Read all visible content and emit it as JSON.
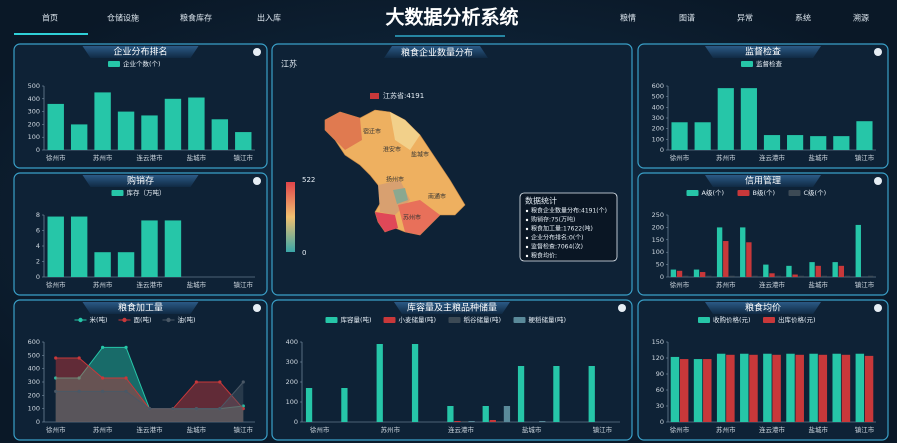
{
  "nav": {
    "title": "大数据分析系统",
    "left": [
      "首页",
      "仓储设施",
      "粮食库存",
      "出入库"
    ],
    "right": [
      "粮情",
      "图谱",
      "异常",
      "系统",
      "溯源"
    ]
  },
  "map": {
    "title": "粮食企业数量分布",
    "region": "江苏",
    "tooltip": "江苏省:4191",
    "visual_max": 522,
    "visual_min": 0,
    "labels": [
      "宿迁市",
      "淮安市",
      "盐城市",
      "扬州市",
      "南通市",
      "苏州市"
    ],
    "stats_title": "数据统计",
    "stats": [
      "粮食企业数量分布:4191(个)",
      "购销存:75(万吨)",
      "粮食加工量:17622(吨)",
      "企业分布排名:0(个)",
      "监督检查:7064(次)",
      "粮食均价:"
    ]
  },
  "chart_data": [
    {
      "type": "bar",
      "title": "企业分布排名",
      "categories": [
        "徐州市",
        null,
        "苏州市",
        null,
        "连云港市",
        null,
        "盐城市",
        null,
        "镇江市"
      ],
      "series": [
        {
          "name": "企业个数(个)",
          "color": "#26c6a8",
          "values": [
            360,
            200,
            450,
            300,
            270,
            400,
            410,
            240,
            140
          ]
        }
      ],
      "ylim": [
        0,
        500
      ],
      "yticks": [
        0,
        100,
        200,
        300,
        400,
        500
      ]
    },
    {
      "type": "bar",
      "title": "购销存",
      "categories": [
        "徐州市",
        null,
        "苏州市",
        null,
        "连云港市",
        null,
        "盐城市",
        null,
        "镇江市"
      ],
      "series": [
        {
          "name": "库存（万吨）",
          "color": "#26c6a8",
          "values": [
            7.8,
            7.8,
            3.2,
            3.2,
            7.3,
            7.3,
            null,
            null,
            null
          ]
        }
      ],
      "ylim": [
        0,
        8
      ],
      "yticks": [
        0,
        2,
        4,
        6,
        8
      ]
    },
    {
      "type": "area",
      "title": "粮食加工量",
      "categories": [
        "徐州市",
        null,
        "苏州市",
        null,
        "连云港市",
        null,
        "盐城市",
        null,
        "镇江市"
      ],
      "series": [
        {
          "name": "米(吨)",
          "color": "#26c6a8",
          "values": [
            330,
            330,
            560,
            560,
            100,
            100,
            100,
            100,
            120
          ]
        },
        {
          "name": "面(吨)",
          "color": "#c8383a",
          "values": [
            480,
            480,
            330,
            330,
            100,
            100,
            300,
            300,
            100
          ]
        },
        {
          "name": "油(吨)",
          "color": "#4a5866",
          "values": [
            230,
            230,
            230,
            230,
            100,
            100,
            100,
            100,
            300
          ]
        }
      ],
      "ylim": [
        0,
        600
      ],
      "yticks": [
        0,
        100,
        200,
        300,
        400,
        500,
        600
      ]
    },
    {
      "type": "bar",
      "title": "监督检查",
      "categories": [
        "徐州市",
        null,
        "苏州市",
        null,
        "连云港市",
        null,
        "盐城市",
        null,
        "镇江市"
      ],
      "series": [
        {
          "name": "监督检查",
          "color": "#26c6a8",
          "values": [
            260,
            260,
            580,
            580,
            140,
            140,
            130,
            130,
            270
          ]
        }
      ],
      "ylim": [
        0,
        600
      ],
      "yticks": [
        0,
        100,
        200,
        300,
        400,
        500,
        600
      ]
    },
    {
      "type": "bar",
      "title": "信用管理",
      "categories": [
        "徐州市",
        null,
        "苏州市",
        null,
        "连云港市",
        null,
        "盐城市",
        null,
        "镇江市"
      ],
      "series": [
        {
          "name": "A级(个)",
          "color": "#26c6a8",
          "values": [
            30,
            30,
            200,
            200,
            50,
            45,
            60,
            60,
            210
          ]
        },
        {
          "name": "B级(个)",
          "color": "#c8383a",
          "values": [
            25,
            20,
            145,
            140,
            15,
            10,
            45,
            45,
            0
          ]
        },
        {
          "name": "C级(个)",
          "color": "#3c4a55",
          "values": [
            5,
            5,
            5,
            5,
            5,
            5,
            5,
            5,
            5
          ]
        }
      ],
      "ylim": [
        0,
        250
      ],
      "yticks": [
        0,
        50,
        100,
        150,
        200,
        250
      ]
    },
    {
      "type": "bar",
      "title": "粮食均价",
      "categories": [
        "徐州市",
        null,
        "苏州市",
        null,
        "连云港市",
        null,
        "盐城市",
        null,
        "镇江市"
      ],
      "series": [
        {
          "name": "收购价格(元)",
          "color": "#26c6a8",
          "values": [
            122,
            118,
            128,
            128,
            128,
            128,
            128,
            128,
            128
          ]
        },
        {
          "name": "出库价格(元)",
          "color": "#c8383a",
          "values": [
            118,
            118,
            126,
            126,
            126,
            126,
            126,
            126,
            124
          ]
        }
      ],
      "ylim": [
        0,
        150
      ],
      "yticks": [
        0,
        30,
        60,
        90,
        120,
        150
      ]
    },
    {
      "type": "bar",
      "title": "库容量及主粮品种储量",
      "categories": [
        "徐州市",
        null,
        "苏州市",
        null,
        "连云港市",
        null,
        "盐城市",
        null,
        "镇江市"
      ],
      "series": [
        {
          "name": "库容量(吨)",
          "color": "#26c6a8",
          "values": [
            170,
            170,
            390,
            390,
            80,
            80,
            280,
            280,
            280
          ]
        },
        {
          "name": "小麦储量(吨)",
          "color": "#c8383a",
          "values": [
            0,
            0,
            0,
            0,
            5,
            10,
            0,
            0,
            0
          ]
        },
        {
          "name": "稻谷储量(吨)",
          "color": "#3c4a55",
          "values": [
            0,
            0,
            0,
            0,
            5,
            5,
            0,
            0,
            0
          ]
        },
        {
          "name": "粳稻储量(吨)",
          "color": "#5a8a9a",
          "values": [
            0,
            0,
            0,
            0,
            5,
            80,
            5,
            0,
            0
          ]
        }
      ],
      "ylim": [
        0,
        400
      ],
      "yticks": [
        0,
        100,
        200,
        300,
        400
      ]
    }
  ]
}
